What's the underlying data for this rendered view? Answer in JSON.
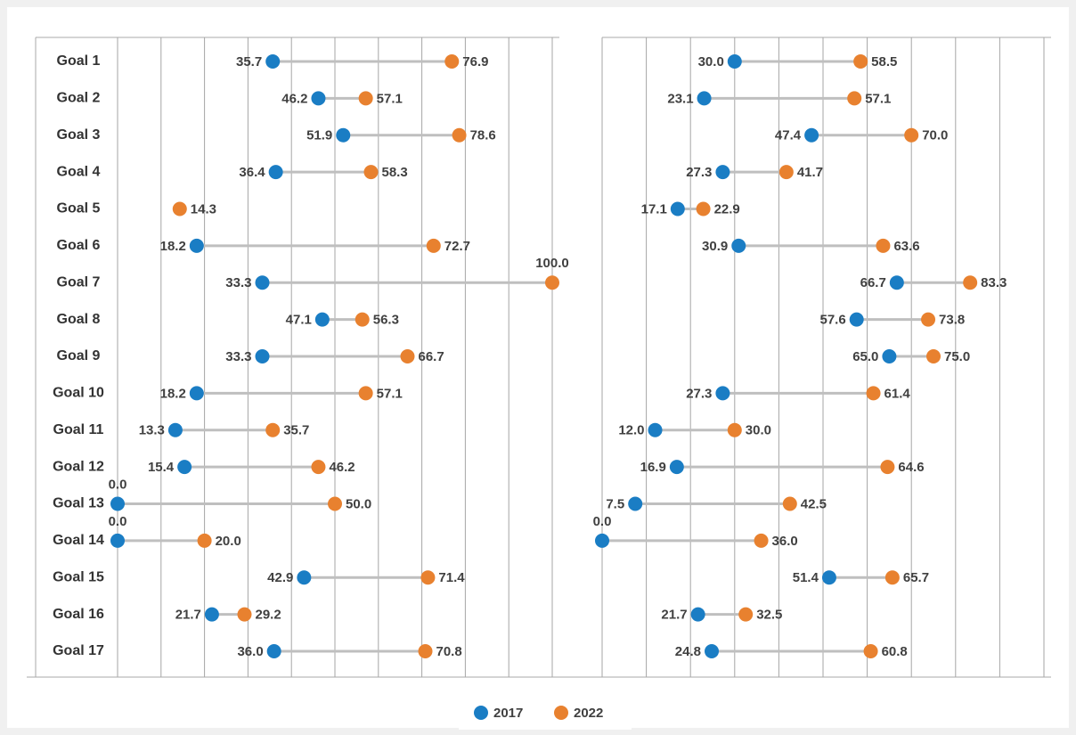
{
  "chart_data": [
    {
      "type": "dumbbell",
      "categories": [
        "Goal 1",
        "Goal 2",
        "Goal 3",
        "Goal 4",
        "Goal 5",
        "Goal 6",
        "Goal 7",
        "Goal 8",
        "Goal 9",
        "Goal 10",
        "Goal 11",
        "Goal 12",
        "Goal 13",
        "Goal 14",
        "Goal 15",
        "Goal 16",
        "Goal 17"
      ],
      "series": [
        {
          "name": "2017",
          "color": "#1a7dc4",
          "values": [
            35.7,
            46.2,
            51.9,
            36.4,
            null,
            18.2,
            33.3,
            47.1,
            33.3,
            18.2,
            13.3,
            15.4,
            0,
            0,
            42.9,
            21.7,
            36
          ],
          "value_labels": [
            "35.7",
            "46.2",
            "51.9",
            "36.4",
            null,
            "18.2",
            "33.3",
            "47.1",
            "33.3",
            "18.2",
            "13.3",
            "15.4",
            "0.0",
            "0.0",
            "42.9",
            "21.7",
            "36.0"
          ]
        },
        {
          "name": "2022",
          "color": "#e8812f",
          "values": [
            76.9,
            57.1,
            78.6,
            58.3,
            14.3,
            72.7,
            100,
            56.3,
            66.7,
            57.1,
            35.7,
            46.2,
            50,
            20,
            71.4,
            29.2,
            70.8
          ],
          "value_labels": [
            "76.9",
            "57.1",
            "78.6",
            "58.3",
            "14.3",
            "72.7",
            "100.0",
            "56.3",
            "66.7",
            "57.1",
            "35.7",
            "46.2",
            "50.0",
            "20.0",
            "71.4",
            "29.2",
            "70.8"
          ]
        }
      ],
      "xlim": [
        0,
        100
      ],
      "xticks": [
        0,
        10,
        20,
        30,
        40,
        50,
        60,
        70,
        80,
        90,
        100
      ],
      "grid": true
    },
    {
      "type": "dumbbell",
      "series": [
        {
          "color": "#1a7dc4",
          "values": [
            30,
            23.1,
            47.4,
            27.3,
            17.1,
            30.9,
            66.7,
            57.6,
            65,
            27.3,
            12,
            16.9,
            7.5,
            0,
            51.4,
            21.7,
            24.8
          ],
          "value_labels": [
            "30.0",
            "23.1",
            "47.4",
            "27.3",
            "17.1",
            "30.9",
            "66.7",
            "57.6",
            "65.0",
            "27.3",
            "12.0",
            "16.9",
            "7.5",
            "0.0",
            "51.4",
            "21.7",
            "24.8"
          ]
        },
        {
          "color": "#e8812f",
          "values": [
            58.5,
            57.1,
            70,
            41.7,
            22.9,
            63.6,
            83.3,
            73.8,
            75,
            61.4,
            30,
            64.6,
            42.5,
            36,
            65.7,
            32.5,
            60.8
          ],
          "value_labels": [
            "58.5",
            "57.1",
            "70.0",
            "41.7",
            "22.9",
            "63.6",
            "83.3",
            "73.8",
            "75.0",
            "61.4",
            "30.0",
            "64.6",
            "42.5",
            "36.0",
            "65.7",
            "32.5",
            "60.8"
          ]
        }
      ],
      "xlim": [
        0,
        100
      ],
      "xticks": [
        0,
        10,
        20,
        30,
        40,
        50,
        60,
        70,
        80,
        90,
        100
      ],
      "grid": true
    }
  ]
}
